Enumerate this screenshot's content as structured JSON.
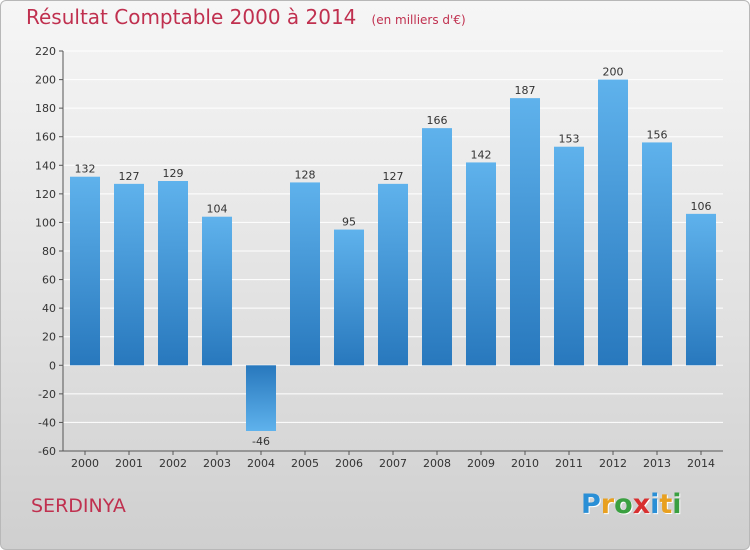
{
  "header": {
    "title": "Résultat Comptable 2000 à 2014",
    "unit": "(en milliers d'€)"
  },
  "footer": {
    "commune": "SERDINYA",
    "brand_letters": [
      {
        "char": "P",
        "color": "#2a8fd6"
      },
      {
        "char": "r",
        "color": "#e8a020"
      },
      {
        "char": "o",
        "color": "#3aa040"
      },
      {
        "char": "x",
        "color": "#d83030"
      },
      {
        "char": "i",
        "color": "#2a8fd6"
      },
      {
        "char": "t",
        "color": "#e8a020"
      },
      {
        "char": "i",
        "color": "#3aa040"
      }
    ]
  },
  "chart_data": {
    "type": "bar",
    "categories": [
      "2000",
      "2001",
      "2002",
      "2003",
      "2004",
      "2005",
      "2006",
      "2007",
      "2008",
      "2009",
      "2010",
      "2011",
      "2012",
      "2013",
      "2014"
    ],
    "values": [
      132,
      127,
      129,
      104,
      -46,
      128,
      95,
      127,
      166,
      142,
      187,
      153,
      200,
      156,
      106
    ],
    "title": "Résultat Comptable 2000 à 2014",
    "subtitle": "(en milliers d'€)",
    "xlabel": "",
    "ylabel": "",
    "ylim": [
      -60,
      220
    ],
    "yticks": [
      -60,
      -40,
      -20,
      0,
      20,
      40,
      60,
      80,
      100,
      120,
      140,
      160,
      180,
      200,
      220
    ],
    "grid": true,
    "legend": "none",
    "colors": {
      "bar_light": "#5fb2ec",
      "bar_dark": "#2878bd",
      "grid": "#ffffff",
      "axis": "#555555",
      "text": "#333333"
    }
  }
}
